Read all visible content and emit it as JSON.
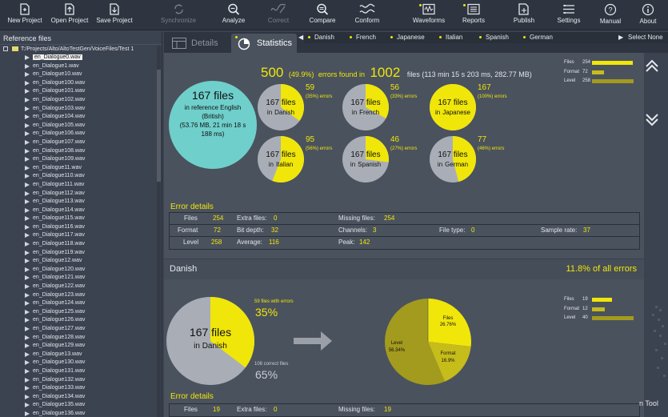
{
  "toolbar": {
    "items": [
      {
        "label": "New Project",
        "icon": "new-project-icon"
      },
      {
        "label": "Open Project",
        "icon": "open-project-icon"
      },
      {
        "label": "Save Project",
        "icon": "save-project-icon"
      },
      {
        "label": "Synchronize",
        "icon": "synchronize-icon"
      },
      {
        "label": "Analyze",
        "icon": "analyze-icon"
      },
      {
        "label": "Correct",
        "icon": "correct-icon"
      },
      {
        "label": "Compare",
        "icon": "compare-icon"
      },
      {
        "label": "Conform",
        "icon": "conform-icon"
      },
      {
        "label": "Waveforms",
        "icon": "waveforms-icon"
      },
      {
        "label": "Reports",
        "icon": "reports-icon"
      },
      {
        "label": "Publish",
        "icon": "publish-icon"
      },
      {
        "label": "Settings",
        "icon": "settings-icon"
      },
      {
        "label": "Manual",
        "icon": "manual-icon"
      },
      {
        "label": "About",
        "icon": "about-icon"
      }
    ]
  },
  "left_panel": {
    "title": "Reference files",
    "root_path": "T:/Projects/Alto/AltoTestGen/VoiceFiles/Test 1",
    "selected": "en_Dialogue0.wav",
    "files": [
      "en_Dialogue0.wav",
      "en_Dialogue1.wav",
      "en_Dialogue10.wav",
      "en_Dialogue100.wav",
      "en_Dialogue101.wav",
      "en_Dialogue102.wav",
      "en_Dialogue103.wav",
      "en_Dialogue104.wav",
      "en_Dialogue105.wav",
      "en_Dialogue106.wav",
      "en_Dialogue107.wav",
      "en_Dialogue108.wav",
      "en_Dialogue109.wav",
      "en_Dialogue11.wav",
      "en_Dialogue110.wav",
      "en_Dialogue111.wav",
      "en_Dialogue112.wav",
      "en_Dialogue113.wav",
      "en_Dialogue114.wav",
      "en_Dialogue115.wav",
      "en_Dialogue116.wav",
      "en_Dialogue117.wav",
      "en_Dialogue118.wav",
      "en_Dialogue119.wav",
      "en_Dialogue12.wav",
      "en_Dialogue120.wav",
      "en_Dialogue121.wav",
      "en_Dialogue122.wav",
      "en_Dialogue123.wav",
      "en_Dialogue124.wav",
      "en_Dialogue125.wav",
      "en_Dialogue126.wav",
      "en_Dialogue127.wav",
      "en_Dialogue128.wav",
      "en_Dialogue129.wav",
      "en_Dialogue13.wav",
      "en_Dialogue130.wav",
      "en_Dialogue131.wav",
      "en_Dialogue132.wav",
      "en_Dialogue133.wav",
      "en_Dialogue134.wav",
      "en_Dialogue135.wav",
      "en_Dialogue136.wav"
    ]
  },
  "tabs": {
    "details": "Details",
    "statistics": "Statistics"
  },
  "language_tabs": [
    "Danish",
    "French",
    "Japanese",
    "Italian",
    "Spanish",
    "German"
  ],
  "select_none": "Select None",
  "summary": {
    "errors": "500",
    "errors_pct": "(49.9%)",
    "errors_found": "errors   found   in",
    "files": "1002",
    "files_detail": "files  (113  min  15  s  203  ms,  282.77  MB)"
  },
  "reference": {
    "count": "167 files",
    "line1": "in reference English",
    "line2": "(British)",
    "line3": "(53.76 MB, 21 min 18 s",
    "line4": "188 ms)"
  },
  "chart_data": [
    {
      "type": "pie",
      "title": "Errors per language",
      "series": [
        {
          "name": "Danish",
          "files": 167,
          "errors": 59,
          "pct_label": "(35%) errors",
          "error_fraction": 0.35
        },
        {
          "name": "French",
          "files": 167,
          "errors": 56,
          "pct_label": "(33%) errors",
          "error_fraction": 0.33
        },
        {
          "name": "Japanese",
          "files": 167,
          "errors": 167,
          "pct_label": "(100%) errors",
          "error_fraction": 1.0
        },
        {
          "name": "Italian",
          "files": 167,
          "errors": 95,
          "pct_label": "(56%) errors",
          "error_fraction": 0.56
        },
        {
          "name": "Spanish",
          "files": 167,
          "errors": 46,
          "pct_label": "(27%) errors",
          "error_fraction": 0.27
        },
        {
          "name": "German",
          "files": 167,
          "errors": 77,
          "pct_label": "(46%) errors",
          "error_fraction": 0.46
        }
      ]
    },
    {
      "type": "bar",
      "title": "Error type totals",
      "categories": [
        "Files",
        "Format",
        "Level"
      ],
      "values": [
        254,
        72,
        258
      ]
    },
    {
      "type": "pie",
      "title": "Danish files with errors",
      "categories": [
        "Files with errors",
        "Correct files"
      ],
      "values": [
        59,
        108
      ]
    },
    {
      "type": "pie",
      "title": "Danish error types",
      "categories": [
        "Files",
        "Format",
        "Level"
      ],
      "values": [
        26.76,
        16.9,
        56.34
      ]
    },
    {
      "type": "bar",
      "title": "Danish error type totals",
      "categories": [
        "Files",
        "Format",
        "Level"
      ],
      "values": [
        19,
        12,
        40
      ]
    }
  ],
  "lang_common": {
    "line1": "167 files",
    "prefix": "in"
  },
  "error_details": {
    "title": "Error details",
    "rows": [
      {
        "k1": "Files",
        "v1": "254",
        "k2": "Extra files:",
        "v2": "0",
        "k3": "Missing files:",
        "v3": "254"
      },
      {
        "k1": "Format",
        "v1": "72",
        "k2": "Bit depth:",
        "v2": "32",
        "k3": "Channels:",
        "v3": "3",
        "k4": "File type:",
        "v4": "0",
        "k5": "Sample rate:",
        "v5": "37"
      },
      {
        "k1": "Level",
        "v1": "258",
        "k2": "Average:",
        "v2": "116",
        "k3": "Peak:",
        "v3": "142"
      }
    ]
  },
  "totals_bars": {
    "files": "254",
    "format": "72",
    "level": "258"
  },
  "danish": {
    "title": "Danish",
    "share": "11.8% of all errors",
    "pie_line1": "167 files",
    "pie_line2": "in Danish",
    "with_errors_label": "59 files with errors",
    "with_errors_pct": "35%",
    "correct_label": "108 correct files",
    "correct_pct": "65%",
    "files_slice": "Files",
    "files_slice_pct": "26.76%",
    "format_slice": "Format",
    "format_slice_pct": "16.9%",
    "level_slice": "Level",
    "level_slice_pct": "56.34%",
    "bars": {
      "files": "19",
      "format": "12",
      "level": "40"
    },
    "error_details_title": "Error details",
    "partial_row": {
      "k1": "Files",
      "v1": "19",
      "k2": "Extra files:",
      "v2": "0",
      "k3": "Missing files:",
      "v3": "19"
    }
  },
  "tool_label": "n Tool",
  "colors": {
    "accent": "#f0e60a",
    "olive": "#b3ab1f",
    "teal": "#6fcfcb",
    "grey": "#a9aeb6"
  }
}
